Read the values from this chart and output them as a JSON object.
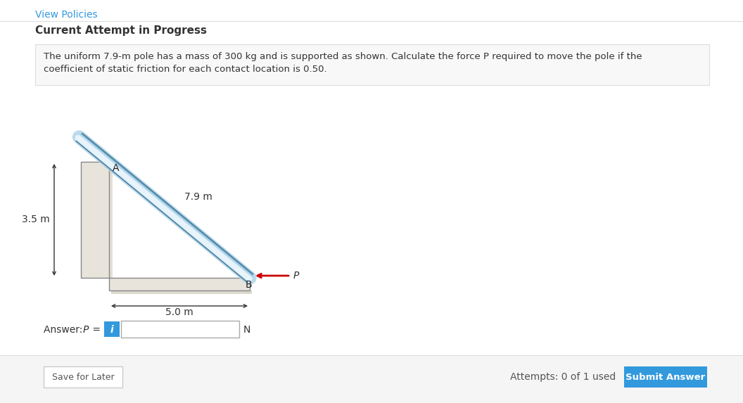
{
  "bg_color": "#ffffff",
  "white_bg": "#ffffff",
  "title_text": "Current Attempt in Progress",
  "link_text": "View Policies",
  "problem_line1": "The uniform 7.9-m pole has a mass of 300 kg and is supported as shown. Calculate the force P required to move the pole if the",
  "problem_line2": "coefficient of static friction for each contact location is 0.50.",
  "answer_label": "Answer: P =",
  "unit_label": "N",
  "attempts_text": "Attempts: 0 of 1 used",
  "submit_text": "Submit Answer",
  "save_text": "Save for Later",
  "dim_35": "3.5 m",
  "dim_79": "7.9 m",
  "dim_50": "5.0 m",
  "label_A": "A",
  "label_B": "B",
  "label_P": "P",
  "pole_highlight": "#e8f4fc",
  "pole_mid": "#b0d4e8",
  "pole_dark": "#78aac8",
  "pole_edge": "#4a80a0",
  "wall_fill": "#e8e4dc",
  "wall_edge": "#888888",
  "wall_shadow": "#c8c0b0",
  "arrow_color": "#cc0000",
  "submit_btn_color": "#3399dd",
  "link_color": "#3399dd",
  "dim_color": "#333333",
  "sep_color": "#dddddd",
  "prob_box_bg": "#f8f8f8",
  "prob_box_edge": "#dddddd",
  "ans_italic_color": "#333333",
  "save_btn_edge": "#cccccc"
}
